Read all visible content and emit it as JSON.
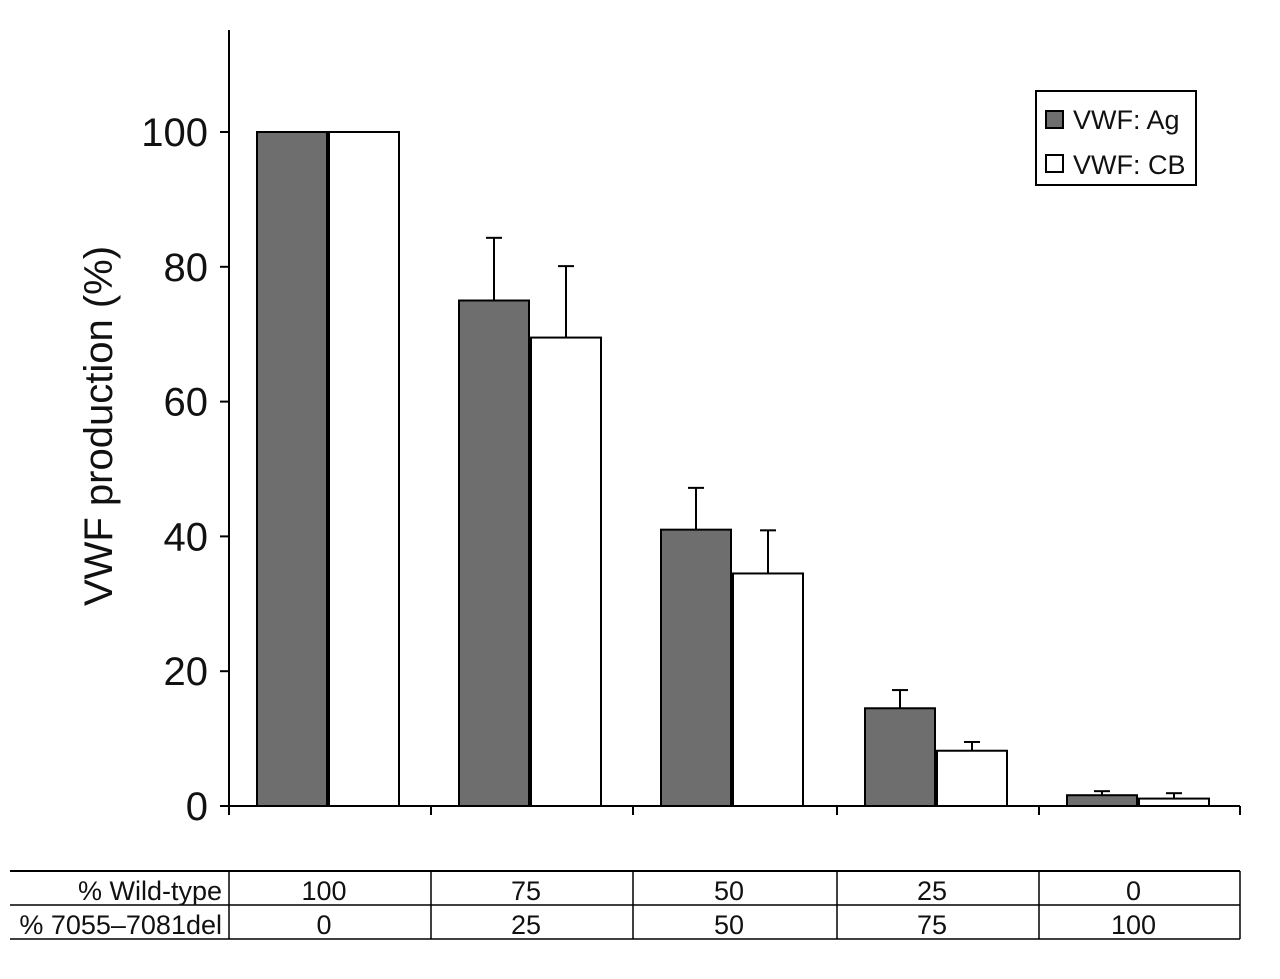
{
  "chart_data": {
    "type": "bar",
    "title": "",
    "xlabel": "",
    "ylabel": "VWF production (%)",
    "ylim": [
      0,
      115
    ],
    "yticks": [
      0,
      20,
      40,
      60,
      80,
      100
    ],
    "grid": false,
    "legend_position": "top-right",
    "categories": [
      "100/0",
      "75/25",
      "50/50",
      "25/75",
      "0/100"
    ],
    "series": [
      {
        "name": "VWF: Ag",
        "color": "#6e6e6e",
        "values": [
          100,
          75,
          41,
          14.5,
          1.6
        ],
        "errors": [
          0,
          9.3,
          6.2,
          2.7,
          0.6
        ]
      },
      {
        "name": "VWF: CB",
        "color": "#ffffff",
        "values": [
          100,
          69.5,
          34.5,
          8.2,
          1.1
        ],
        "errors": [
          0,
          10.6,
          6.4,
          1.3,
          0.8
        ]
      }
    ],
    "table": {
      "rows": [
        {
          "label": "% Wild-type",
          "values": [
            "100",
            "75",
            "50",
            "25",
            "0"
          ]
        },
        {
          "label": "% 7055–7081del",
          "values": [
            "0",
            "25",
            "50",
            "75",
            "100"
          ]
        }
      ]
    }
  }
}
